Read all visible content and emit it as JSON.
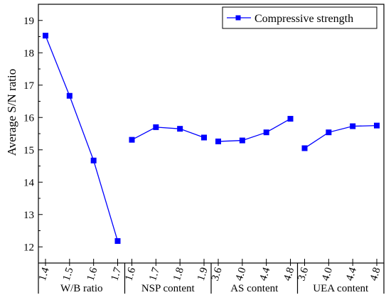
{
  "chart_data": {
    "type": "line",
    "ylabel": "Average S/N ratio",
    "ylim": [
      11.5,
      19.5
    ],
    "yticks": [
      12,
      13,
      14,
      15,
      16,
      17,
      18,
      19
    ],
    "grid": false,
    "legend_position": "top-right",
    "series": [
      {
        "name": "Compressive strength",
        "color": "#0000ff",
        "marker": "square",
        "groups": [
          {
            "label": "W/B ratio",
            "x": [
              "1.4",
              "1.5",
              "1.6",
              "1.7"
            ],
            "values": [
              18.53,
              16.67,
              14.67,
              12.18
            ]
          },
          {
            "label": "NSP content",
            "x": [
              "1.6",
              "1.7",
              "1.8",
              "1.9"
            ],
            "values": [
              15.31,
              15.7,
              15.65,
              15.38
            ]
          },
          {
            "label": "AS content",
            "x": [
              "3.6",
              "4.0",
              "4.4",
              "4.8"
            ],
            "values": [
              15.26,
              15.29,
              15.54,
              15.96
            ]
          },
          {
            "label": "UEA content",
            "x": [
              "3.6",
              "4.0",
              "4.4",
              "4.8"
            ],
            "values": [
              15.05,
              15.54,
              15.73,
              15.75
            ]
          }
        ]
      }
    ]
  }
}
